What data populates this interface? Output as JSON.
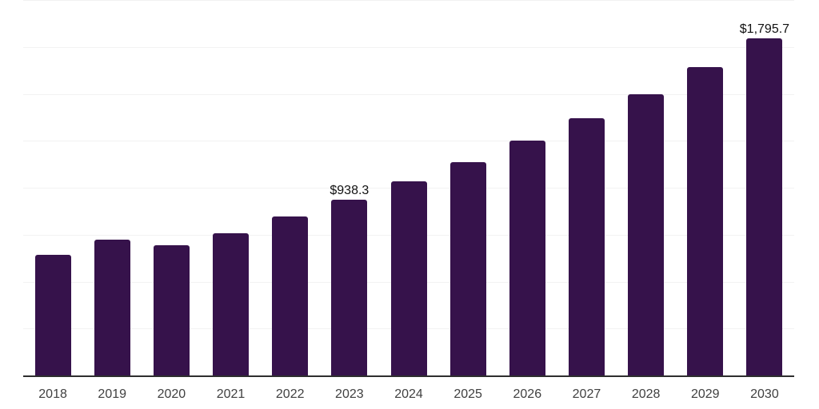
{
  "chart_data": {
    "type": "bar",
    "title": "",
    "xlabel": "",
    "ylabel": "",
    "categories": [
      "2018",
      "2019",
      "2020",
      "2021",
      "2022",
      "2023",
      "2024",
      "2025",
      "2026",
      "2027",
      "2028",
      "2029",
      "2030"
    ],
    "values": [
      643,
      725,
      695,
      756,
      847,
      938.3,
      1033,
      1136,
      1252,
      1369,
      1499,
      1643,
      1795.7
    ],
    "data_labels": [
      "",
      "",
      "",
      "",
      "",
      "$938.3",
      "",
      "",
      "",
      "",
      "",
      "",
      "$1,795.7"
    ],
    "ylim": [
      0,
      2000
    ],
    "gridline_step": 250,
    "grid": true,
    "y_axis_tick_labels_visible": false,
    "legend_position": "none",
    "colors": {
      "bar": "#36124B",
      "axis_line": "#2E2E2E",
      "gridline": "#F2F2F2",
      "tick_label": "#404040",
      "data_label": "#111111",
      "background": "#FFFFFF"
    }
  }
}
